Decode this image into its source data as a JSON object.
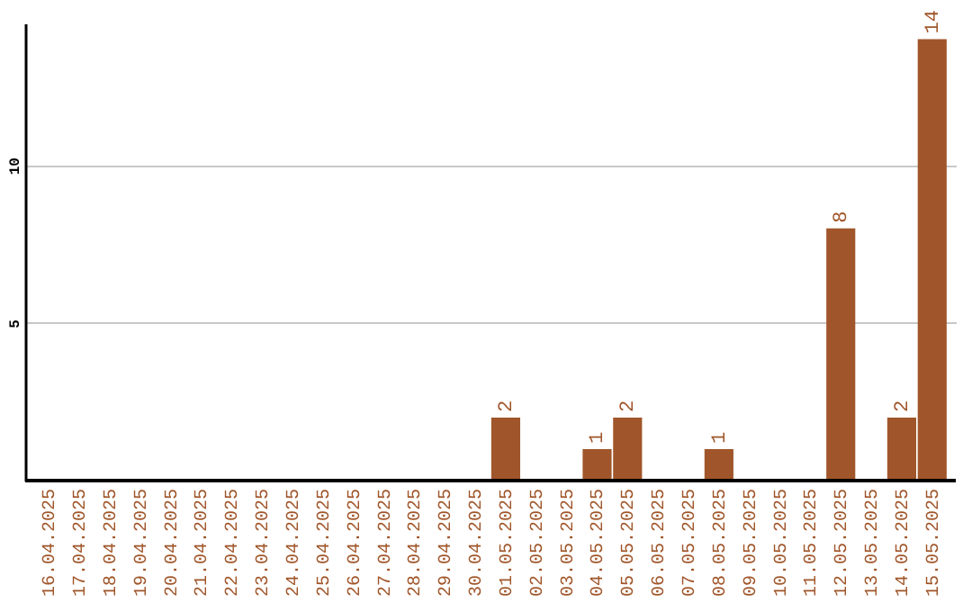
{
  "chart_data": {
    "type": "bar",
    "categories": [
      "16.04.2025",
      "17.04.2025",
      "18.04.2025",
      "19.04.2025",
      "20.04.2025",
      "21.04.2025",
      "22.04.2025",
      "23.04.2025",
      "24.04.2025",
      "25.04.2025",
      "26.04.2025",
      "27.04.2025",
      "28.04.2025",
      "29.04.2025",
      "30.04.2025",
      "01.05.2025",
      "02.05.2025",
      "03.05.2025",
      "04.05.2025",
      "05.05.2025",
      "06.05.2025",
      "07.05.2025",
      "08.05.2025",
      "09.05.2025",
      "10.05.2025",
      "11.05.2025",
      "12.05.2025",
      "13.05.2025",
      "14.05.2025",
      "15.05.2025"
    ],
    "values": [
      0,
      0,
      0,
      0,
      0,
      0,
      0,
      0,
      0,
      0,
      0,
      0,
      0,
      0,
      0,
      2,
      0,
      0,
      1,
      2,
      0,
      0,
      1,
      0,
      0,
      0,
      8,
      0,
      2,
      14
    ],
    "value_labels": [
      null,
      null,
      null,
      null,
      null,
      null,
      null,
      null,
      null,
      null,
      null,
      null,
      null,
      null,
      null,
      "2",
      null,
      null,
      "1",
      "2",
      null,
      null,
      "1",
      null,
      null,
      null,
      "8",
      null,
      "2",
      "14"
    ],
    "color": "#a0562a",
    "ylim": [
      0,
      14.5
    ],
    "yticks": [
      5,
      10
    ],
    "grid": "y"
  }
}
